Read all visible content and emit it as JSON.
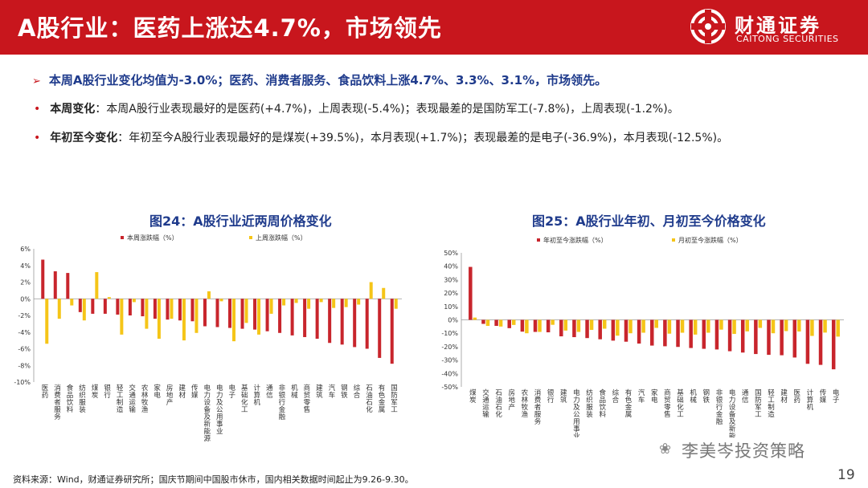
{
  "header": {
    "title": "A股行业：医药上涨达4.7%，市场领先",
    "logo_cn": "财通证券",
    "logo_en": "CAITONG SECURITIES"
  },
  "summary": "本周A股行业变化均值为-3.0%；医药、消费者服务、食品饮料上涨4.7%、3.3%、3.1%，市场领先。",
  "bullets": [
    {
      "label": "本周变化",
      "text": "：本周A股行业表现最好的是医药(+4.7%)，上周表现(-5.4%)；表现最差的是国防军工(-7.8%)，上周表现(-1.2%)。"
    },
    {
      "label": "年初至今变化",
      "text": "：年初至今A股行业表现最好的是煤炭(+39.5%)，本月表现(+1.7%)；表现最差的是电子(-36.9%)，本月表现(-12.5%)。"
    }
  ],
  "colors": {
    "red": "#c8252c",
    "yellow": "#f5c518",
    "brand": "#c8161d",
    "blue": "#1f3b8c"
  },
  "chart_data": [
    {
      "type": "bar",
      "title": "图24：A股行业近两周价格变化",
      "ylim": [
        -10,
        6
      ],
      "yticks": [
        6,
        4,
        2,
        0,
        -2,
        -4,
        -6,
        -8,
        -10
      ],
      "ytick_labels": [
        "6%",
        "4%",
        "2%",
        "0%",
        "-2%",
        "-4%",
        "-6%",
        "-8%",
        "-10%"
      ],
      "legend_position": "top",
      "categories": [
        "医药",
        "消费者服务",
        "食品饮料",
        "纺织服装",
        "煤炭",
        "银行",
        "轻工制造",
        "交通运输",
        "农林牧渔",
        "家电",
        "房地产",
        "建材",
        "传媒",
        "电力设备及新能源",
        "电力及公用事业",
        "电子",
        "基础化工",
        "计算机",
        "通信",
        "非银行金融",
        "机械",
        "商贸零售",
        "建筑",
        "汽车",
        "钢铁",
        "综合",
        "石油石化",
        "有色金属",
        "国防军工"
      ],
      "series": [
        {
          "name": "本周涨跌幅（%）",
          "values": [
            4.7,
            3.3,
            3.1,
            -1.6,
            -1.8,
            -1.8,
            -1.9,
            -2.0,
            -2.1,
            -2.4,
            -2.5,
            -2.6,
            -2.7,
            -3.3,
            -3.4,
            -3.5,
            -3.6,
            -3.7,
            -3.9,
            -4.1,
            -4.4,
            -4.6,
            -4.8,
            -5.3,
            -5.5,
            -5.8,
            -6.0,
            -7.1,
            -7.8
          ]
        },
        {
          "name": "上周涨跌幅（%）",
          "values": [
            -5.4,
            -2.4,
            -0.8,
            -2.6,
            3.2,
            0.2,
            -4.3,
            -0.4,
            -3.6,
            -4.8,
            -2.4,
            -5.0,
            -4.1,
            0.9,
            -0.3,
            -5.1,
            -2.9,
            -4.3,
            -1.8,
            -0.8,
            -0.5,
            -1.2,
            -0.4,
            -1.1,
            -1.0,
            -0.7,
            2.0,
            1.3,
            -1.2
          ]
        }
      ]
    },
    {
      "type": "bar",
      "title": "图25：A股行业年初、月初至今价格变化",
      "ylim": [
        -50,
        50
      ],
      "yticks": [
        50,
        40,
        30,
        20,
        10,
        0,
        -10,
        -20,
        -30,
        -40,
        -50
      ],
      "ytick_labels": [
        "50%",
        "40%",
        "30%",
        "20%",
        "10%",
        "0%",
        "-10%",
        "-20%",
        "-30%",
        "-40%",
        "-50%"
      ],
      "legend_position": "top",
      "categories": [
        "煤炭",
        "交通运输",
        "石油石化",
        "房地产",
        "农林牧渔",
        "消费者服务",
        "银行",
        "建筑",
        "电力及公用事业",
        "纺织服装",
        "食品饮料",
        "综合",
        "有色金属",
        "汽车",
        "家电",
        "商贸零售",
        "基础化工",
        "机械",
        "钢铁",
        "非银行金融",
        "电力设备及新能源",
        "通信",
        "国防军工",
        "轻工制造",
        "建材",
        "医药",
        "计算机",
        "传媒",
        "电子"
      ],
      "series": [
        {
          "name": "年初至今涨跌幅（%）",
          "values": [
            39.5,
            -3.0,
            -4.5,
            -6.2,
            -8.8,
            -9.0,
            -9.3,
            -12.3,
            -12.9,
            -13.6,
            -14.5,
            -15.5,
            -16.3,
            -17.7,
            -19.2,
            -19.7,
            -20.2,
            -21.0,
            -21.6,
            -22.1,
            -23.4,
            -24.4,
            -25.5,
            -26.1,
            -26.4,
            -28.1,
            -32.8,
            -33.6,
            -36.9
          ]
        },
        {
          "name": "月初至今涨跌幅（%）",
          "values": [
            1.7,
            -4.5,
            -5.0,
            -3.8,
            -10.0,
            -9.0,
            -3.7,
            -8.0,
            -9.0,
            -7.5,
            -6.6,
            -11.8,
            -10.0,
            -9.6,
            -6.0,
            -10.3,
            -9.6,
            -11.0,
            -9.6,
            -7.3,
            -10.5,
            -8.6,
            -6.0,
            -10.0,
            -8.4,
            -8.7,
            -12.0,
            -9.5,
            -12.5
          ]
        }
      ]
    }
  ],
  "footer": "资料来源：Wind，财通证券研究所；国庆节期间中国股市休市，国内相关数据时间起止为9.26-9.30。",
  "watermark": "李美岑投资策略",
  "page_number": "19"
}
